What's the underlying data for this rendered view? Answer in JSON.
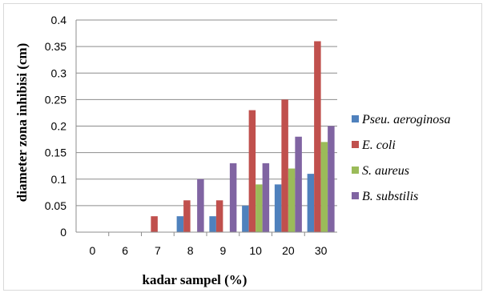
{
  "chart_data": {
    "type": "bar",
    "title": "",
    "xlabel": "kadar sampel (%)",
    "ylabel": "diameter zona inhibisi (cm)",
    "categories": [
      "0",
      "6",
      "7",
      "8",
      "9",
      "10",
      "20",
      "30"
    ],
    "ylim": [
      0,
      0.4
    ],
    "yticks": [
      "0",
      "0.05",
      "0.1",
      "0.15",
      "0.2",
      "0.25",
      "0.3",
      "0.35",
      "0.4"
    ],
    "grid": "horizontal",
    "legend_position": "right",
    "series": [
      {
        "name": "Pseu. aeroginosa",
        "color": "#4f81bd",
        "values": [
          0,
          0,
          0,
          0.03,
          0.03,
          0.05,
          0.09,
          0.11
        ]
      },
      {
        "name": "E. coli",
        "color": "#c0504d",
        "values": [
          0,
          0,
          0.03,
          0.06,
          0.06,
          0.23,
          0.25,
          0.36
        ]
      },
      {
        "name": "S. aureus",
        "color": "#9bbb59",
        "values": [
          0,
          0,
          0,
          0,
          0,
          0.09,
          0.12,
          0.17
        ]
      },
      {
        "name": "B. substilis",
        "color": "#8064a2",
        "values": [
          0,
          0,
          0,
          0.1,
          0.13,
          0.13,
          0.18,
          0.2
        ]
      }
    ]
  }
}
